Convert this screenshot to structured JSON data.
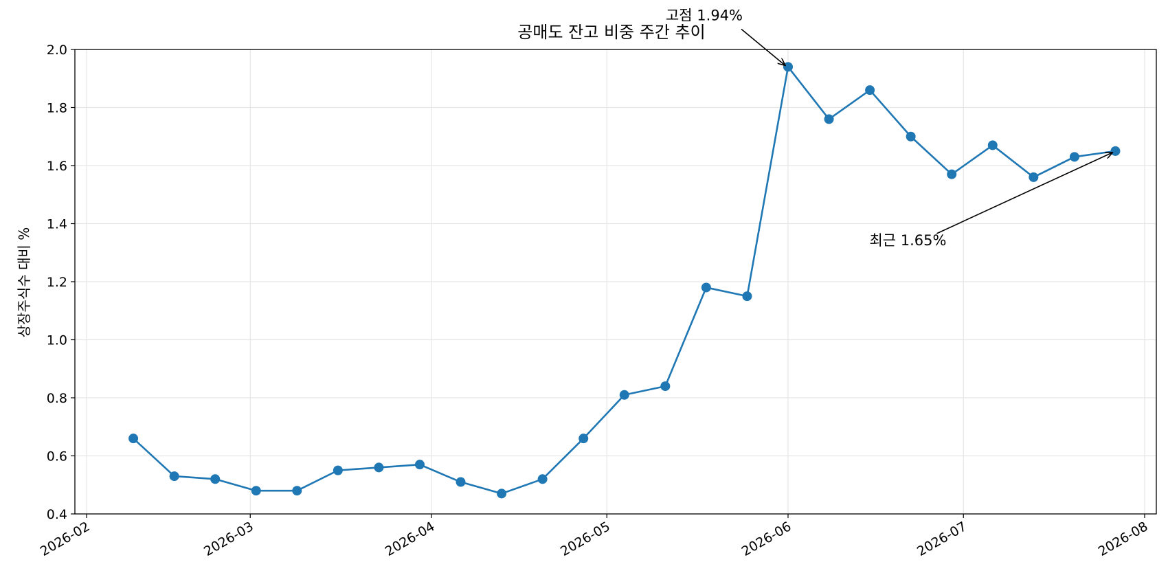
{
  "chart_data": {
    "type": "line",
    "title": "공매도 잔고 비중 주간 추이",
    "xlabel": "",
    "ylabel": "상장주식수 대비 %",
    "ylim": [
      0.4,
      2.0
    ],
    "xlim": [
      "2026-01-30",
      "2026-08-03"
    ],
    "grid": true,
    "color": "#1f77b4",
    "x_ticks": [
      "2026-02",
      "2026-03",
      "2026-04",
      "2026-05",
      "2026-06",
      "2026-07",
      "2026-08"
    ],
    "y_ticks": [
      "0.4",
      "0.6",
      "0.8",
      "1.0",
      "1.2",
      "1.4",
      "1.6",
      "1.8",
      "2.0"
    ],
    "series": [
      {
        "x": [
          "2026-02-09",
          "2026-02-16",
          "2026-02-23",
          "2026-03-02",
          "2026-03-09",
          "2026-03-16",
          "2026-03-23",
          "2026-03-30",
          "2026-04-06",
          "2026-04-13",
          "2026-04-20",
          "2026-04-27",
          "2026-05-04",
          "2026-05-11",
          "2026-05-18",
          "2026-05-25",
          "2026-06-01",
          "2026-06-08",
          "2026-06-15",
          "2026-06-22",
          "2026-06-29",
          "2026-07-06",
          "2026-07-13",
          "2026-07-20",
          "2026-07-27"
        ],
        "values": [
          0.66,
          0.53,
          0.52,
          0.48,
          0.48,
          0.55,
          0.56,
          0.57,
          0.51,
          0.47,
          0.52,
          0.66,
          0.81,
          0.84,
          1.18,
          1.15,
          1.94,
          1.76,
          1.86,
          1.7,
          1.57,
          1.67,
          1.56,
          1.63,
          1.65
        ]
      }
    ],
    "annotations": [
      {
        "text": "고점 1.94%",
        "x": "2026-06-01",
        "y": 1.94
      },
      {
        "text": "최근 1.65%",
        "x": "2026-07-27",
        "y": 1.65
      }
    ]
  }
}
